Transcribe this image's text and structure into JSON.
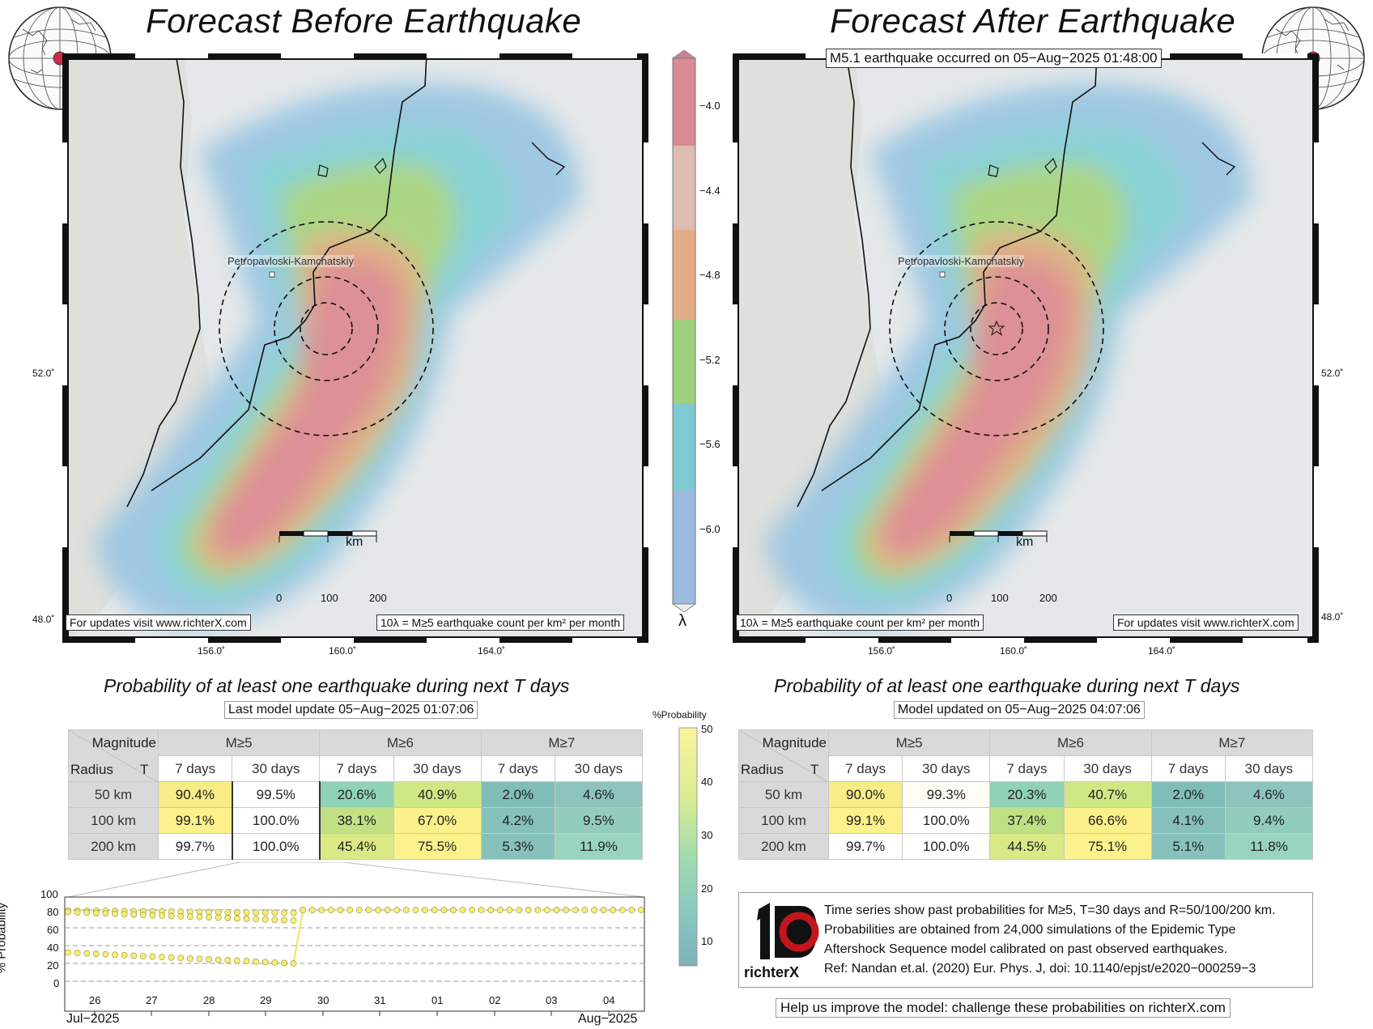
{
  "left_map": {
    "title": "Forecast Before Earthquake",
    "city": "Petropavloski-Kamchatskiy",
    "footer_left": "For updates visit www.richterX.com",
    "footer_right": "10λ = M≥5 earthquake count per km² per month",
    "lat_labels": [
      "52.0˚",
      "48.0˚"
    ],
    "lon_labels": [
      "156.0˚",
      "160.0˚",
      "164.0˚"
    ]
  },
  "right_map": {
    "title": "Forecast After Earthquake",
    "event_label": "M5.1 earthquake occurred on 05−Aug−2025 01:48:00",
    "city": "Petropavloski-Kamchatskiy",
    "footer_left": "10λ = M≥5 earthquake count per km² per month",
    "footer_right": "For updates visit www.richterX.com",
    "lat_labels": [
      "52.0˚",
      "48.0˚"
    ],
    "lon_labels": [
      "156.0˚",
      "160.0˚",
      "164.0˚"
    ]
  },
  "scale_bar": {
    "unit": "km",
    "ticks": [
      "0",
      "100",
      "200"
    ]
  },
  "lambda_colorbar": {
    "symbol": "λ",
    "ticks": [
      "−4.0",
      "−4.4",
      "−4.8",
      "−5.2",
      "−5.6",
      "−6.0"
    ],
    "colors": [
      "#d9848c",
      "#e0a57f",
      "#9ecf7e",
      "#79c9d1",
      "#8fb3dd"
    ]
  },
  "prob_colorbar": {
    "title": "%Probability",
    "ticks": [
      "50",
      "40",
      "30",
      "20",
      "10"
    ]
  },
  "left_table": {
    "title": "Probability of at least one earthquake during next T days",
    "update": "Last model update 05−Aug−2025 01:07:06",
    "corner_top": "Magnitude",
    "corner_left": "Radius",
    "corner_right": "T",
    "mag_headers": [
      "M≥5",
      "M≥6",
      "M≥7"
    ],
    "t_headers": [
      "7 days",
      "30 days",
      "7 days",
      "30 days",
      "7 days",
      "30 days"
    ],
    "rows": [
      {
        "radius": "50 km",
        "values": [
          "90.4%",
          "99.5%",
          "20.6%",
          "40.9%",
          "2.0%",
          "4.6%"
        ]
      },
      {
        "radius": "100 km",
        "values": [
          "99.1%",
          "100.0%",
          "38.1%",
          "67.0%",
          "4.2%",
          "9.5%"
        ]
      },
      {
        "radius": "200 km",
        "values": [
          "99.7%",
          "100.0%",
          "45.4%",
          "75.5%",
          "5.3%",
          "11.9%"
        ]
      }
    ],
    "colors": [
      [
        "#f7ec86",
        "#ffffff",
        "#8fd2b5",
        "#cfe884",
        "#7fbdb8",
        "#8dc4be"
      ],
      [
        "#fcf18b",
        "#ffffff",
        "#c2e184",
        "#fbf08a",
        "#85c0ba",
        "#92cdbc"
      ],
      [
        "#ffffff",
        "#ffffff",
        "#dbe985",
        "#fcf28c",
        "#86c2bb",
        "#98d5bc"
      ]
    ]
  },
  "right_table": {
    "title": "Probability of at least one earthquake during next T days",
    "update": "Model updated on 05−Aug−2025 04:07:06",
    "corner_top": "Magnitude",
    "corner_left": "Radius",
    "corner_right": "T",
    "mag_headers": [
      "M≥5",
      "M≥6",
      "M≥7"
    ],
    "t_headers": [
      "7 days",
      "30 days",
      "7 days",
      "30 days",
      "7 days",
      "30 days"
    ],
    "rows": [
      {
        "radius": "50 km",
        "values": [
          "90.0%",
          "99.3%",
          "20.3%",
          "40.7%",
          "2.0%",
          "4.6%"
        ]
      },
      {
        "radius": "100 km",
        "values": [
          "99.1%",
          "100.0%",
          "37.4%",
          "66.6%",
          "4.1%",
          "9.4%"
        ]
      },
      {
        "radius": "200 km",
        "values": [
          "99.7%",
          "100.0%",
          "44.5%",
          "75.1%",
          "5.1%",
          "11.8%"
        ]
      }
    ],
    "colors": [
      [
        "#f7ec86",
        "#fdfdf6",
        "#8fd2b5",
        "#cfe884",
        "#7fbdb8",
        "#8dc4be"
      ],
      [
        "#fcf18b",
        "#ffffff",
        "#c0e084",
        "#fbf08a",
        "#85c0ba",
        "#92cdbc"
      ],
      [
        "#ffffff",
        "#ffffff",
        "#d9e985",
        "#fcf28c",
        "#86c2bb",
        "#98d5bc"
      ]
    ]
  },
  "timeseries": {
    "ylabel": "% Probability",
    "yticks": [
      "100",
      "80",
      "60",
      "40",
      "20",
      "0"
    ],
    "day_labels": [
      "26",
      "27",
      "28",
      "29",
      "30",
      "31",
      "01",
      "02",
      "03",
      "04"
    ],
    "month_left": "Jul−2025",
    "month_right": "Aug−2025"
  },
  "info": {
    "logo_text": "richterX",
    "lines": [
      "Time series show past probabilities for M≥5, T=30 days and R=50/100/200 km.",
      "Probabilities are obtained from 24,000 simulations of the Epidemic Type",
      "Aftershock Sequence model calibrated on past observed earthquakes.",
      "Ref: Nandan et.al. (2020) Eur. Phys. J, doi: 10.1140/epjst/e2020−000259−3"
    ],
    "help": "Help us improve the model: challenge these probabilities on richterX.com"
  }
}
